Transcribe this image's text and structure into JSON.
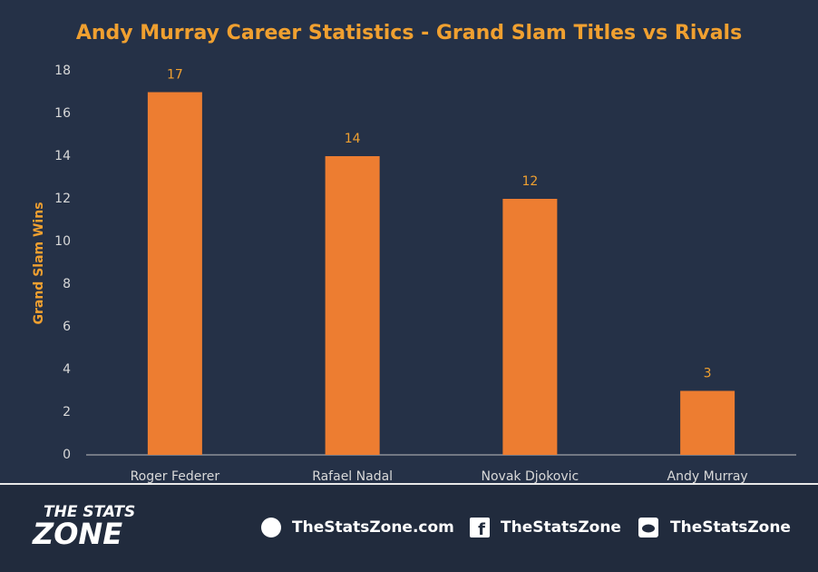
{
  "chart_data": {
    "type": "bar",
    "title": "Andy Murray Career Statistics - Grand Slam Titles vs Rivals",
    "y_label": "Grand Slam Wins",
    "categories": [
      "Roger Federer",
      "Rafael Nadal",
      "Novak Djokovic",
      "Andy Murray"
    ],
    "values": [
      17,
      14,
      12,
      3
    ],
    "color": "#ed7d31",
    "ylim": [
      0,
      18
    ],
    "yticks": [
      0,
      2,
      4,
      6,
      8,
      10,
      12,
      14,
      16,
      18
    ],
    "grid": false
  },
  "footer": {
    "logo_top": "THE STATS",
    "logo_bottom": "ZONE",
    "website": "TheStatsZone.com",
    "facebook": "TheStatsZone",
    "twitter": "TheStatsZone"
  }
}
